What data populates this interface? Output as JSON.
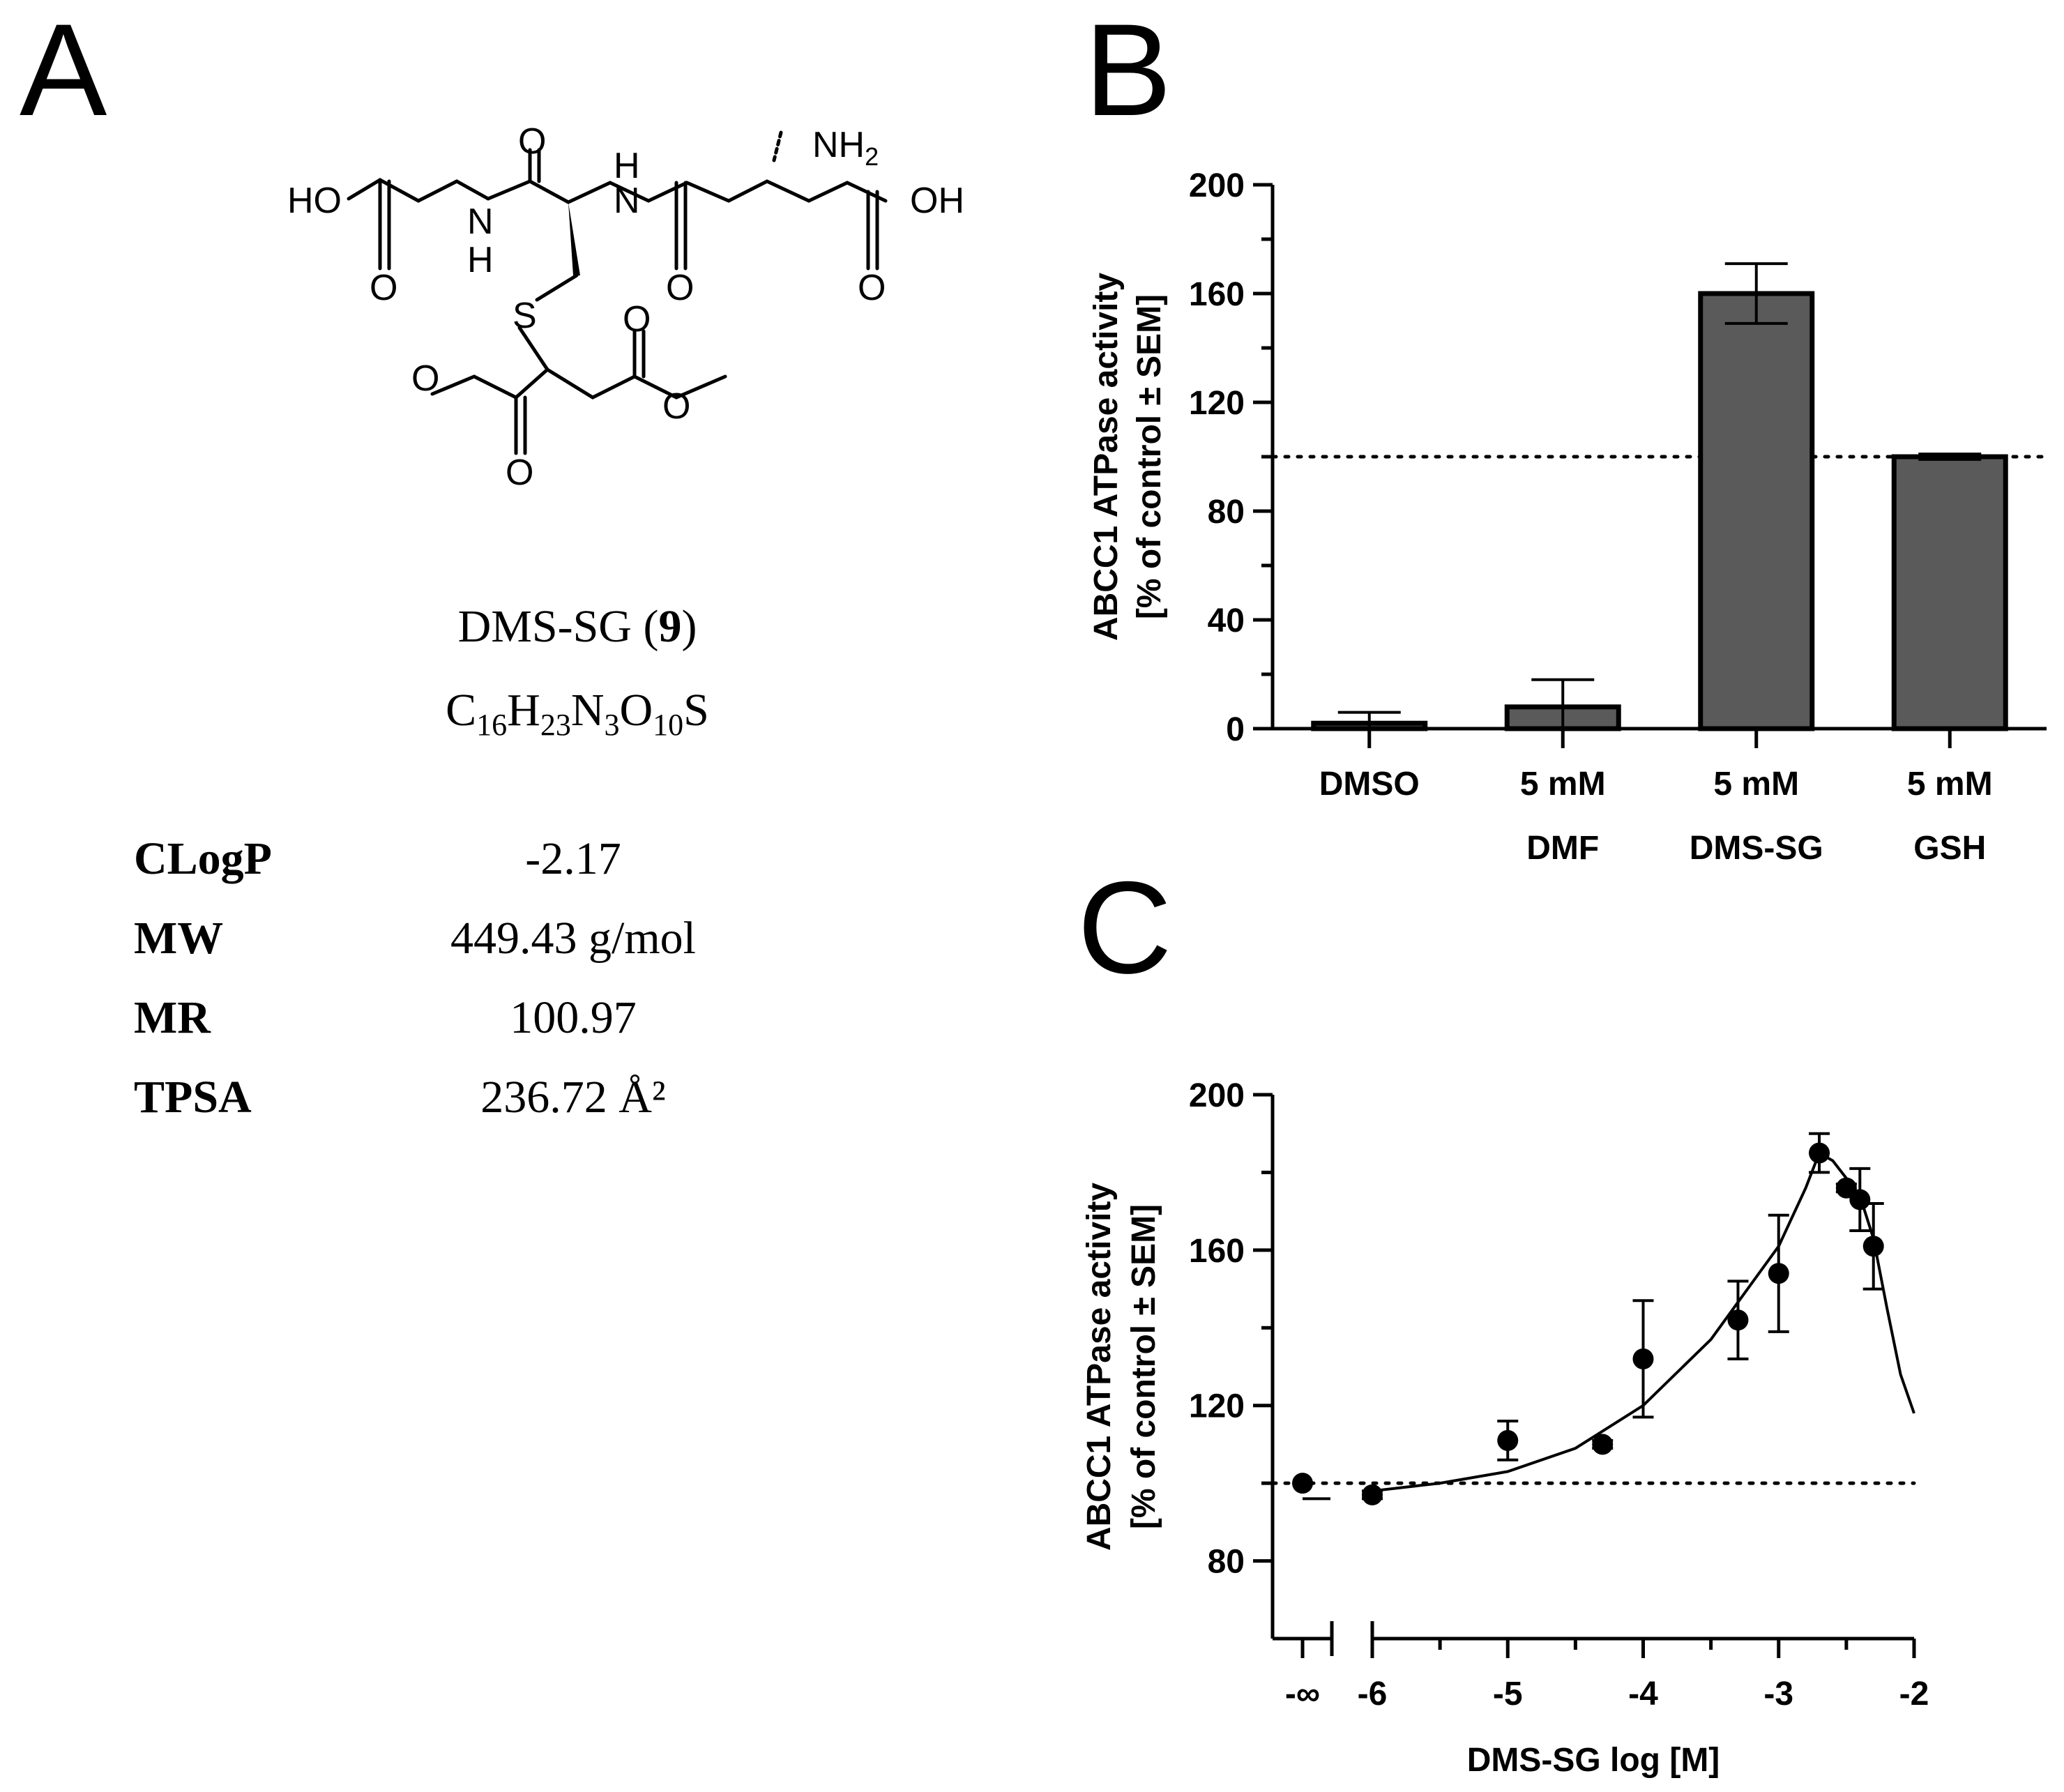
{
  "panels": {
    "a": "A",
    "b": "B",
    "c": "C"
  },
  "molecule": {
    "atoms": {
      "ho": "HO",
      "n_amide1": "N",
      "h_amide1": "H",
      "h_amide2": "H",
      "n_amide2": "N",
      "nh2": "NH",
      "nh2_sub": "2",
      "oh": "OH",
      "s": "S",
      "o": "O"
    },
    "name": "DMS-SG (",
    "name_num": "9",
    "name_close": ")",
    "formula": {
      "c": "C",
      "c_n": "16",
      "h": "H",
      "h_n": "23",
      "n": "N",
      "n_n": "3",
      "o": "O",
      "o_n": "10",
      "s": "S"
    }
  },
  "properties": [
    {
      "label": "CLogP",
      "value": "-2.17"
    },
    {
      "label": "MW",
      "value": "449.43 g/mol"
    },
    {
      "label": "MR",
      "value": "100.97"
    },
    {
      "label": "TPSA",
      "value": "236.72 Å²"
    }
  ],
  "chart_data": [
    {
      "type": "bar",
      "ylabel_line1": "ABCC1 ATPase activity",
      "ylabel_line2": "[% of control ± SEM]",
      "ylim": [
        0,
        200
      ],
      "yticks": [
        0,
        40,
        80,
        120,
        160,
        200
      ],
      "reference_line": 100,
      "categories": [
        {
          "line1": "DMSO",
          "line2": ""
        },
        {
          "line1": "5 mM",
          "line2": "DMF"
        },
        {
          "line1": "5 mM",
          "line2": "DMS-SG"
        },
        {
          "line1": "5 mM",
          "line2": "GSH"
        }
      ],
      "values": [
        2,
        8,
        160,
        100
      ],
      "errors": [
        4,
        10,
        11,
        1
      ],
      "bar_color": "#5a5a5a"
    },
    {
      "type": "scatter",
      "xlabel": "DMS-SG log [M]",
      "ylabel_line1": "ABCC1 ATPase activity",
      "ylabel_line2": "[% of control ± SEM]",
      "ylim": [
        60,
        200
      ],
      "yticks": [
        80,
        120,
        160,
        200
      ],
      "xlim": [
        -6,
        -2
      ],
      "xticks": [
        -6,
        -5,
        -4,
        -3,
        -2
      ],
      "xtick_labels": [
        "-6",
        "-5",
        "-4",
        "-3",
        "-2"
      ],
      "control_label": "-∞",
      "reference_line": 100,
      "control_point": {
        "y": 100,
        "err": 4
      },
      "points": [
        {
          "x": -6.0,
          "y": 97,
          "err": 1
        },
        {
          "x": -5.0,
          "y": 111,
          "err": 5
        },
        {
          "x": -4.3,
          "y": 110,
          "err": 1
        },
        {
          "x": -4.0,
          "y": 132,
          "err": 15
        },
        {
          "x": -3.3,
          "y": 142,
          "err": 10
        },
        {
          "x": -3.0,
          "y": 154,
          "err": 15
        },
        {
          "x": -2.7,
          "y": 185,
          "err": 5
        },
        {
          "x": -2.5,
          "y": 176,
          "err": 1
        },
        {
          "x": -2.4,
          "y": 173,
          "err": 8
        },
        {
          "x": -2.3,
          "y": 161,
          "err": 11
        }
      ],
      "fit_curve": [
        [
          -6.0,
          98
        ],
        [
          -5.5,
          100
        ],
        [
          -5.0,
          103
        ],
        [
          -4.5,
          109
        ],
        [
          -4.0,
          120
        ],
        [
          -3.5,
          137
        ],
        [
          -3.0,
          161
        ],
        [
          -2.8,
          176
        ],
        [
          -2.7,
          185
        ],
        [
          -2.6,
          183
        ],
        [
          -2.4,
          174
        ],
        [
          -2.3,
          163
        ],
        [
          -2.2,
          145
        ],
        [
          -2.1,
          128
        ],
        [
          -2.0,
          118
        ]
      ]
    }
  ]
}
